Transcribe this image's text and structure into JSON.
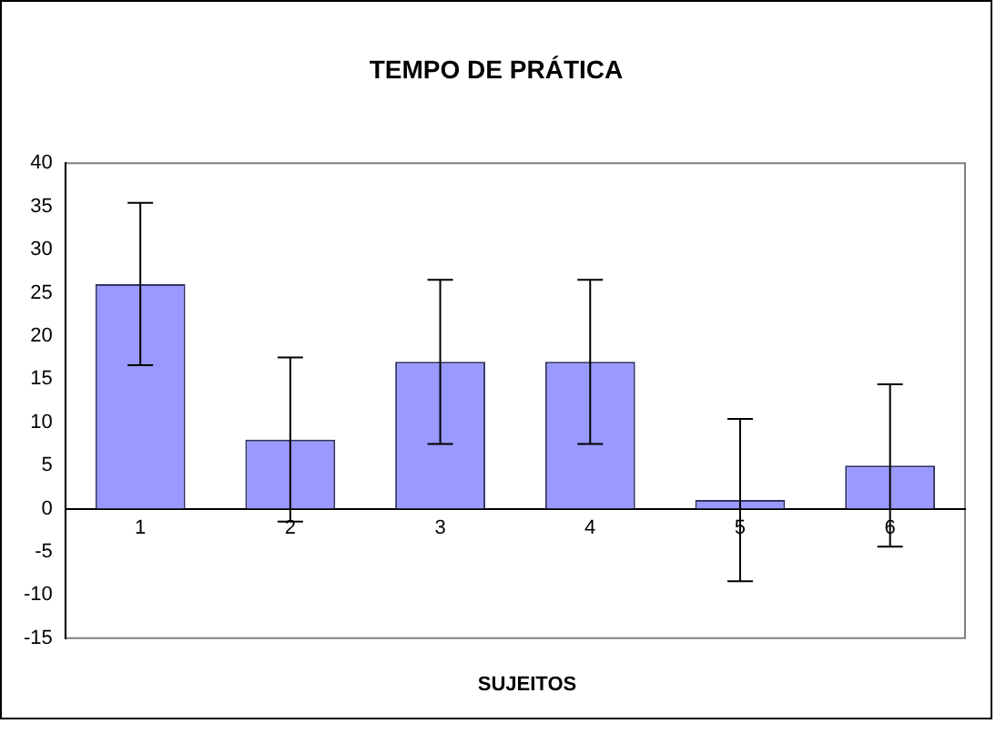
{
  "chart_data": {
    "type": "bar",
    "title": "TEMPO DE PRÁTICA",
    "xlabel": "SUJEITOS",
    "categories": [
      "1",
      "2",
      "3",
      "4",
      "5",
      "6"
    ],
    "values": [
      26,
      8,
      17,
      17,
      1,
      5
    ],
    "errors": [
      9.4,
      9.5,
      9.5,
      9.5,
      9.4,
      9.4
    ],
    "color": "#9999ff",
    "ylim": [
      -15,
      40
    ],
    "yticks": [
      -15,
      -10,
      -5,
      0,
      5,
      10,
      15,
      20,
      25,
      30,
      35,
      40
    ],
    "grid": false,
    "legend": false
  }
}
